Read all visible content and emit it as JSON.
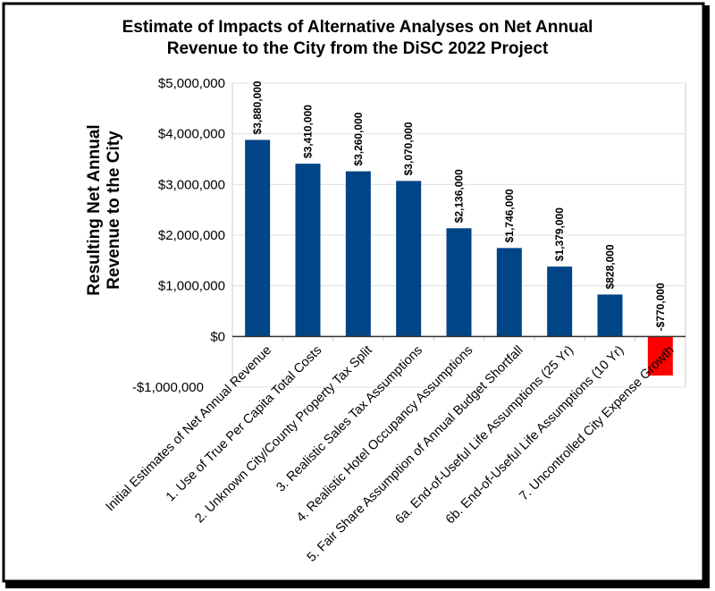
{
  "chart_data": {
    "type": "bar",
    "title_lines": [
      "Estimate of Impacts of Alternative Analyses on Net Annual",
      "Revenue to the City from the DiSC 2022 Project"
    ],
    "ylabel_lines": [
      "Resulting Net Annual",
      "Revenue to the City"
    ],
    "xlabel": "",
    "ylim": [
      -1000000,
      5000000
    ],
    "yticks": [
      {
        "value": 5000000,
        "label": "$5,000,000"
      },
      {
        "value": 4000000,
        "label": "$4,000,000"
      },
      {
        "value": 3000000,
        "label": "$3,000,000"
      },
      {
        "value": 2000000,
        "label": "$2,000,000"
      },
      {
        "value": 1000000,
        "label": "$1,000,000"
      },
      {
        "value": 0,
        "label": "$0"
      },
      {
        "value": -1000000,
        "label": "-$1,000,000"
      }
    ],
    "grid": true,
    "legend": "none",
    "categories": [
      "Initial Estimates of Net Annual Revenue",
      "1. Use of True Per Capita Total Costs",
      "2. Unknown City/County Property Tax Split",
      "3. Realistic Sales Tax Assumptions",
      "4. Realistic Hotel Occupancy Assumptions",
      "5. Fair Share Assumption of Annual Budget Shortfall",
      "6a. End-of-Useful Life Assumptions (25 Yr)",
      "6b. End-of-Useful Life Assumptions (10 Yr)",
      "7. Uncontrolled City Expense Growth"
    ],
    "values": [
      3880000,
      3410000,
      3260000,
      3070000,
      2136000,
      1746000,
      1379000,
      828000,
      -770000
    ],
    "data_labels": [
      "$3,880,000",
      "$3,410,000",
      "$3,260,000",
      "$3,070,000",
      "$2,136,000",
      "$1,746,000",
      "$1,379,000",
      "$828,000",
      "-$770,000"
    ],
    "colors": {
      "positive": "#004586",
      "negative": "#ff0000",
      "negative_text": "#ff0000",
      "grid": "#e0e0e0"
    }
  }
}
